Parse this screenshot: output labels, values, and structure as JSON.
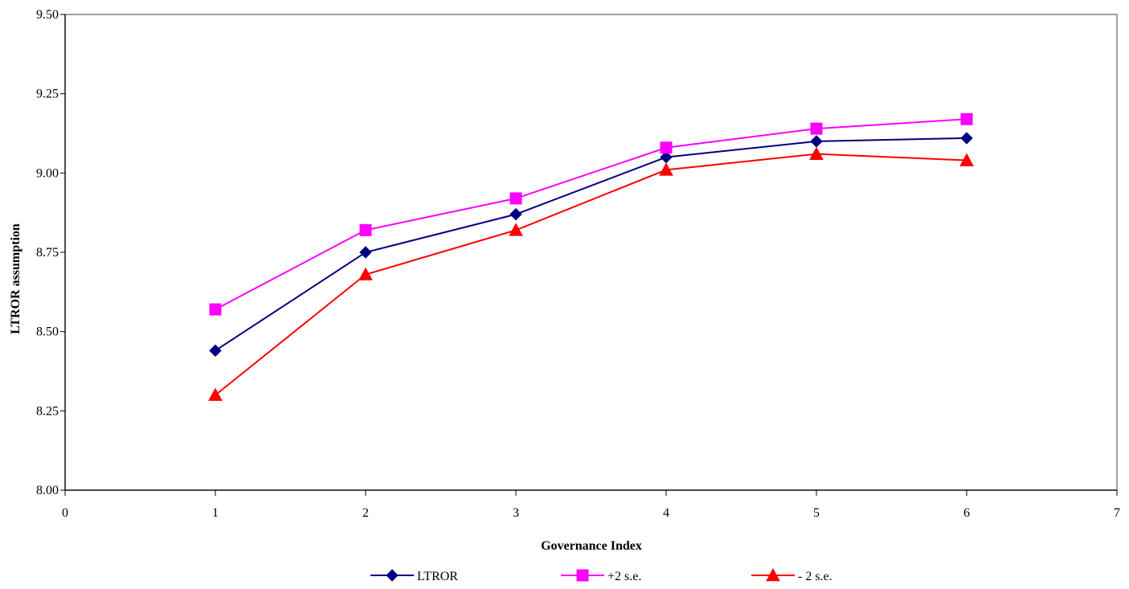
{
  "chart_data": {
    "type": "line",
    "title": "",
    "xlabel": "Governance Index",
    "ylabel": "LTROR assumption",
    "xlim": [
      0,
      7
    ],
    "ylim": [
      8.0,
      9.5
    ],
    "x_ticks": [
      "0",
      "1",
      "2",
      "3",
      "4",
      "5",
      "6",
      "7"
    ],
    "y_ticks": [
      "8.00",
      "8.25",
      "8.50",
      "8.75",
      "9.00",
      "9.25",
      "9.50"
    ],
    "grid": false,
    "legend_position": "bottom",
    "x": [
      1,
      2,
      3,
      4,
      5,
      6
    ],
    "series": [
      {
        "name": "LTROR",
        "values": [
          8.44,
          8.75,
          8.87,
          9.05,
          9.1,
          9.11
        ],
        "color": "#000080",
        "marker": "diamond"
      },
      {
        "name": "+2 s.e.",
        "values": [
          8.57,
          8.82,
          8.92,
          9.08,
          9.14,
          9.17
        ],
        "color": "#FF00FF",
        "marker": "square"
      },
      {
        "name": "- 2 s.e.",
        "values": [
          8.3,
          8.68,
          8.82,
          9.01,
          9.06,
          9.04
        ],
        "color": "#FF0000",
        "marker": "triangle"
      }
    ]
  }
}
